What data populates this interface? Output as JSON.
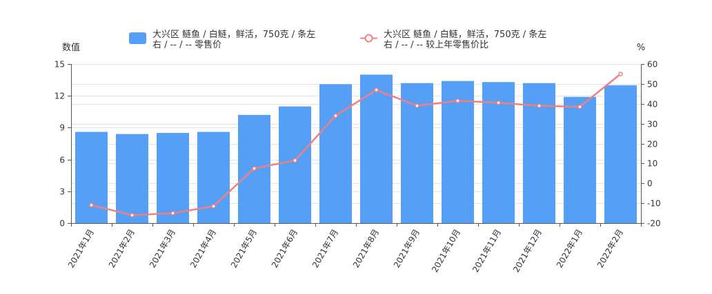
{
  "chart_data": {
    "type": "bar",
    "legend_position": "top-center",
    "grid": true,
    "categories": [
      "2021年1月",
      "2021年2月",
      "2021年3月",
      "2021年4月",
      "2021年5月",
      "2021年6月",
      "2021年7月",
      "2021年8月",
      "2021年9月",
      "2021年10月",
      "2021年11月",
      "2021年12月",
      "2022年1月",
      "2022年2月"
    ],
    "y_left": {
      "label": "数值",
      "range": [
        0,
        15
      ],
      "ticks": [
        0,
        3,
        6,
        9,
        12,
        15
      ]
    },
    "y_right": {
      "label": "%",
      "range": [
        -20,
        60
      ],
      "ticks": [
        -20,
        -10,
        0,
        10,
        20,
        30,
        40,
        50,
        60
      ]
    },
    "series": [
      {
        "name_lines": [
          "大兴区 鲢鱼 / 白鲢，鲜活，750克 / 条左",
          "右 / -- / -- 零售价"
        ],
        "type": "bar",
        "axis": "left",
        "color": "#559ff7",
        "values": [
          8.6,
          8.4,
          8.5,
          8.6,
          10.2,
          11.0,
          13.1,
          14.0,
          13.2,
          13.4,
          13.3,
          13.2,
          11.9,
          13.0
        ]
      },
      {
        "name_lines": [
          "大兴区 鲢鱼 / 白鲢，鲜活，750克 / 条左",
          "右 / -- / -- 较上年零售价比"
        ],
        "type": "line",
        "axis": "right",
        "color": "#f08080",
        "values": [
          -11,
          -16,
          -15,
          -11.5,
          7.5,
          11.5,
          34,
          47,
          39,
          41.5,
          40.5,
          39,
          38.5,
          55
        ]
      }
    ]
  }
}
